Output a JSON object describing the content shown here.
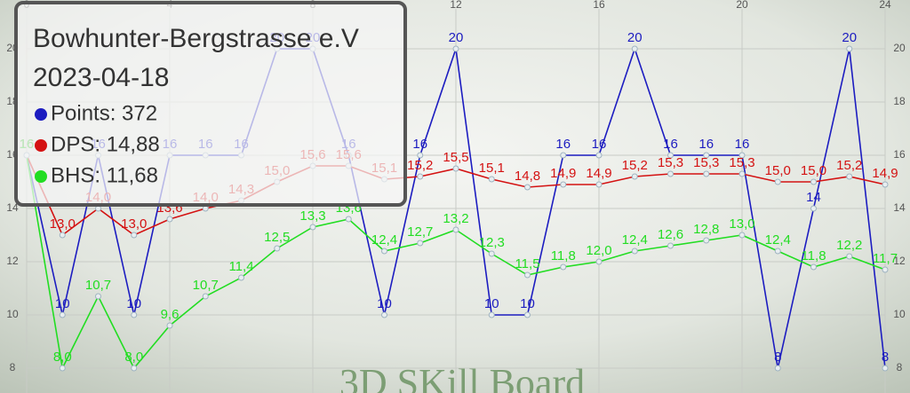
{
  "chart_data": {
    "type": "line",
    "title": "Bowhunter-Bergstrasse e.V",
    "subtitle": "2023-04-18",
    "watermark": "3D SKill Board",
    "x": [
      0,
      1,
      2,
      3,
      4,
      5,
      6,
      7,
      8,
      9,
      10,
      11,
      12,
      13,
      14,
      15,
      16,
      17,
      18,
      19,
      20,
      21,
      22,
      23,
      24
    ],
    "xlim": [
      0,
      24
    ],
    "xticks": [
      0,
      4,
      8,
      12,
      16,
      20,
      24
    ],
    "ylim": [
      7,
      21.5
    ],
    "yticks": [
      8,
      10,
      12,
      14,
      16,
      18,
      20
    ],
    "grid": true,
    "series": [
      {
        "name": "Points: 372",
        "color": "#1c1cc0",
        "values": [
          16,
          10,
          16,
          10,
          16,
          16,
          16,
          20,
          20,
          16,
          10,
          16,
          20,
          10,
          10,
          16,
          16,
          20,
          16,
          16,
          16,
          8,
          14,
          20,
          8
        ]
      },
      {
        "name": "DPS: 14,88",
        "color": "#d41212",
        "values": [
          16,
          13.0,
          14.0,
          13.0,
          13.6,
          14.0,
          14.3,
          15.0,
          15.6,
          15.6,
          15.1,
          15.2,
          15.5,
          15.1,
          14.8,
          14.9,
          14.9,
          15.2,
          15.3,
          15.3,
          15.3,
          15.0,
          15.0,
          15.2,
          14.9
        ],
        "value_labels": [
          "16",
          "13,0",
          "14,0",
          "13,0",
          "13,6",
          "14,0",
          "14,3",
          "15,0",
          "15,6",
          "15,6",
          "15,1",
          "15,2",
          "15,5",
          "15,1",
          "14,8",
          "14,9",
          "14,9",
          "15,2",
          "15,3",
          "15,3",
          "15,3",
          "15,0",
          "15,0",
          "15,2",
          "14,9"
        ]
      },
      {
        "name": "BHS: 11,68",
        "color": "#22dd22",
        "values": [
          16,
          8.0,
          10.7,
          8.0,
          9.6,
          10.7,
          11.4,
          12.5,
          13.3,
          13.6,
          12.4,
          12.7,
          13.2,
          12.3,
          11.5,
          11.8,
          12.0,
          12.4,
          12.6,
          12.8,
          13.0,
          12.4,
          11.8,
          12.2,
          11.7
        ],
        "value_labels": [
          "16",
          "8,0",
          "10,7",
          "8,0",
          "9,6",
          "10,7",
          "11,4",
          "12,5",
          "13,3",
          "13,6",
          "12,4",
          "12,7",
          "13,2",
          "12,3",
          "11,5",
          "11,8",
          "12,0",
          "12,4",
          "12,6",
          "12,8",
          "13,0",
          "12,4",
          "11,8",
          "12,2",
          "11,7"
        ]
      }
    ]
  }
}
